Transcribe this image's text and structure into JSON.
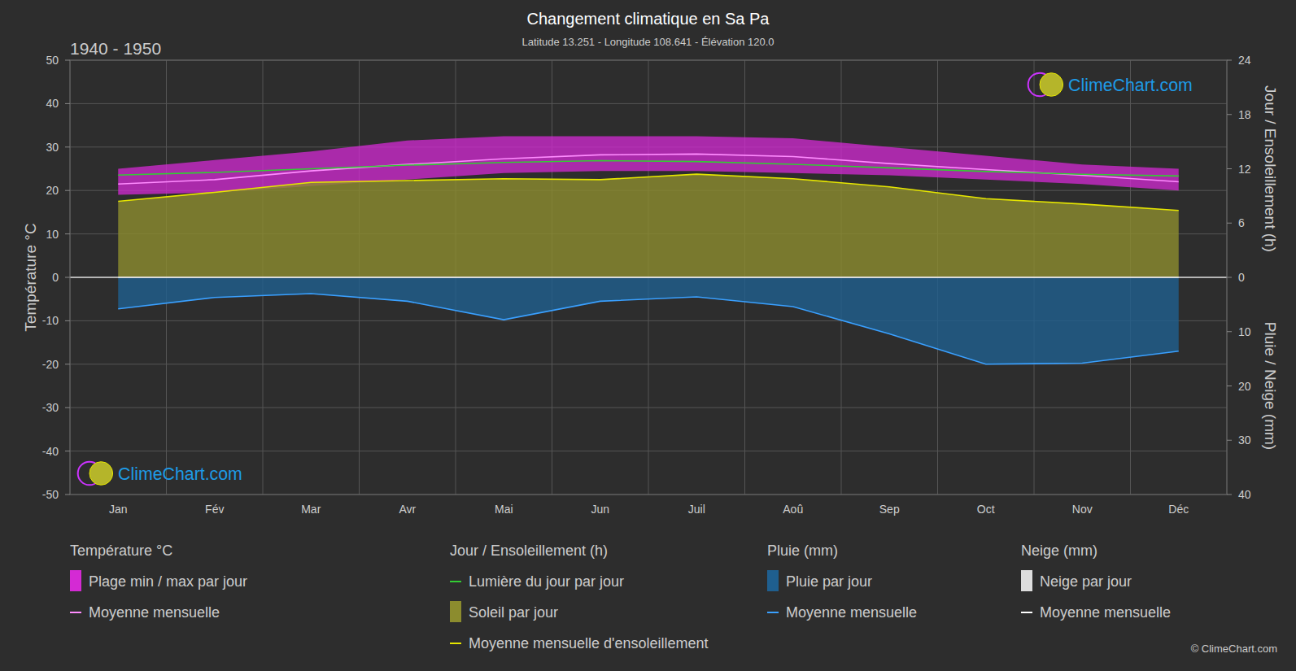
{
  "chart_data": {
    "type": "line",
    "title": "Changement climatique en Sa Pa",
    "subtitle": "Latitude 13.251 - Longitude 108.641 - Élévation 120.0",
    "period": "1940 - 1950",
    "watermark": "ClimeChart.com",
    "copyright": "© ClimeChart.com",
    "y_label": "Température °C",
    "y2_label": "Jour / Ensoleillement (h)",
    "y3_label": "Pluie / Neige (mm)",
    "categories": [
      "Jan",
      "Fév",
      "Mar",
      "Avr",
      "Mai",
      "Jun",
      "Juil",
      "Aoû",
      "Sep",
      "Oct",
      "Nov",
      "Déc"
    ],
    "ylim": [
      -50,
      50
    ],
    "yticks": [
      -50,
      -40,
      -30,
      -20,
      -10,
      0,
      10,
      20,
      30,
      40,
      50
    ],
    "y2lim": [
      0,
      24
    ],
    "y2ticks": [
      0,
      6,
      12,
      18,
      24
    ],
    "y3lim": [
      0,
      40
    ],
    "y3ticks": [
      10,
      20,
      30,
      40
    ],
    "grid": true,
    "legend": "bottom",
    "legend_groups": [
      "Température °C",
      "Jour / Ensoleillement (h)",
      "Pluie (mm)",
      "Neige (mm)"
    ],
    "series": [
      {
        "name": "Plage min / max par jour",
        "type": "band",
        "color": "#d42ad4",
        "group": 0,
        "values": [
          25,
          27,
          29,
          31.5,
          32.5,
          32.5,
          32.5,
          32,
          30,
          28,
          26,
          25
        ],
        "low": [
          19,
          19.5,
          21,
          22.5,
          24,
          24.5,
          24.5,
          24,
          23.5,
          22.5,
          21.5,
          20
        ]
      },
      {
        "name": "Moyenne mensuelle",
        "type": "line",
        "color": "#ff8cff",
        "group": 0,
        "values": [
          21.5,
          22.5,
          24.5,
          26,
          27.3,
          28.2,
          28.4,
          27.8,
          26.2,
          24.8,
          23.5,
          22
        ]
      },
      {
        "name": "Lumière du jour par jour",
        "type": "line",
        "color": "#33cc33",
        "group": 1,
        "axis": "y2",
        "values": [
          11.3,
          11.6,
          12.0,
          12.4,
          12.7,
          12.9,
          12.8,
          12.5,
          12.1,
          11.7,
          11.4,
          11.2
        ]
      },
      {
        "name": "Soleil par jour",
        "type": "area",
        "color": "#8c8c2e",
        "group": 1,
        "axis": "y2",
        "values": [
          8.4,
          9.4,
          10.5,
          10.7,
          10.9,
          10.8,
          11.4,
          10.9,
          10.0,
          8.7,
          8.1,
          7.4
        ]
      },
      {
        "name": "Moyenne mensuelle d'ensoleillement",
        "type": "line",
        "color": "#e6e600",
        "group": 1,
        "axis": "y2",
        "values": [
          8.4,
          9.4,
          10.5,
          10.7,
          10.9,
          10.8,
          11.4,
          10.9,
          10.0,
          8.7,
          8.1,
          7.4
        ]
      },
      {
        "name": "Pluie par jour",
        "type": "area",
        "color": "#1f5f8f",
        "group": 2,
        "axis": "y3",
        "values": [
          5.8,
          3.7,
          3.0,
          4.4,
          7.8,
          4.4,
          3.6,
          5.4,
          10.4,
          16.0,
          15.8,
          13.6
        ]
      },
      {
        "name": "Moyenne mensuelle",
        "type": "line",
        "color": "#3aa0ff",
        "group": 2,
        "axis": "y3",
        "values": [
          5.8,
          3.7,
          3.0,
          4.4,
          7.8,
          4.4,
          3.6,
          5.4,
          10.4,
          16.0,
          15.8,
          13.6
        ]
      },
      {
        "name": "Neige par jour",
        "type": "area",
        "color": "#dddddd",
        "group": 3,
        "axis": "y3",
        "values": [
          0,
          0,
          0,
          0,
          0,
          0,
          0,
          0,
          0,
          0,
          0,
          0
        ]
      },
      {
        "name": "Moyenne mensuelle",
        "type": "line",
        "color": "#ffffff",
        "group": 3,
        "axis": "y3",
        "values": [
          0,
          0,
          0,
          0,
          0,
          0,
          0,
          0,
          0,
          0,
          0,
          0
        ]
      }
    ]
  }
}
